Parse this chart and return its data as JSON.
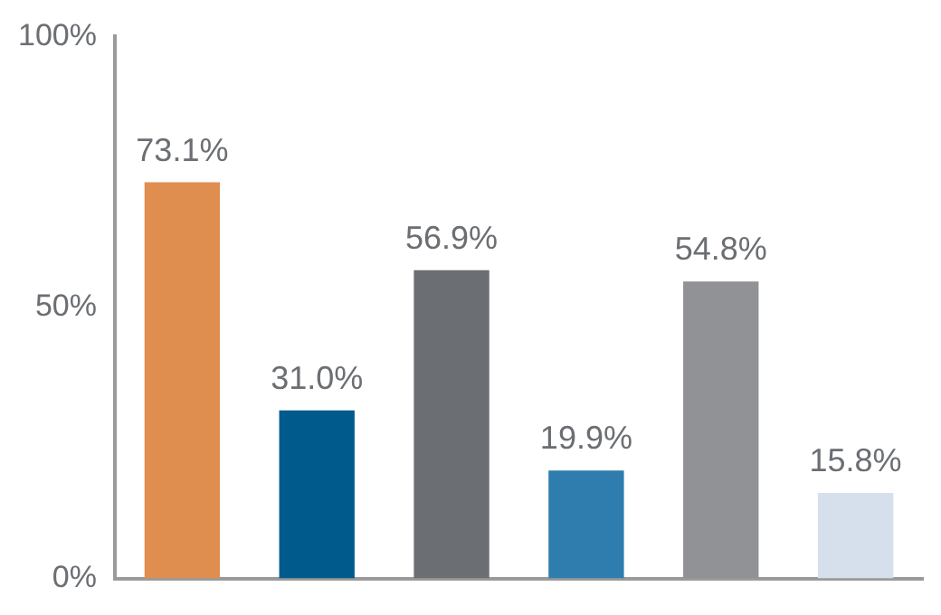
{
  "chart_data": {
    "type": "bar",
    "categories": [
      null,
      null,
      null,
      null,
      null,
      null
    ],
    "values": [
      73.1,
      31.0,
      56.9,
      19.9,
      54.8,
      15.8
    ],
    "colors": [
      "#e08e50",
      "#005a8b",
      "#6b6e72",
      "#2e7dae",
      "#909295",
      "#d5e0ec"
    ],
    "value_labels": [
      "73.1%",
      "31.0%",
      "56.9%",
      "19.9%",
      "54.8%",
      "15.8%"
    ],
    "ylim": [
      0,
      100
    ],
    "yticks": [
      {
        "value": 0,
        "label": "0%"
      },
      {
        "value": 50,
        "label": "50%"
      },
      {
        "value": 100,
        "label": "100%"
      }
    ],
    "grid": false
  }
}
